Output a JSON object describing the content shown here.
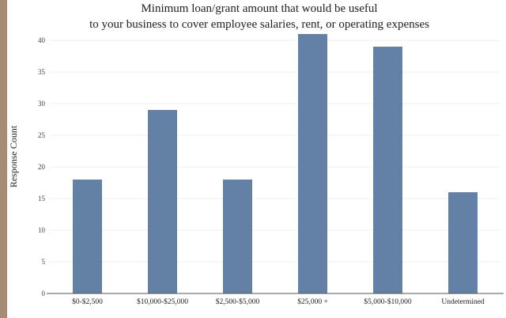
{
  "chart_data": {
    "type": "bar",
    "title": "Minimum loan/grant amount that would be useful to your business to cover employee salaries, rent, or operating expenses",
    "title_lines": [
      "Minimum loan/grant amount that would be useful",
      "to your business to cover employee salaries, rent, or operating expenses"
    ],
    "xlabel": "",
    "ylabel": "Response Count",
    "categories": [
      "$0-$2,500",
      "$10,000-$25,000",
      "$2,500-$5,000",
      "$25,000 +",
      "$5,000-$10,000",
      "Undetermined"
    ],
    "values": [
      18,
      29,
      18,
      41,
      39,
      16
    ],
    "ylim": [
      0,
      40
    ],
    "yticks": [
      0,
      5,
      10,
      15,
      20,
      25,
      30,
      35,
      40
    ],
    "grid": true,
    "legend": "none",
    "colors": {
      "bar": "#6381a6",
      "background": "#ffffff",
      "frame": "#a58c70"
    }
  }
}
